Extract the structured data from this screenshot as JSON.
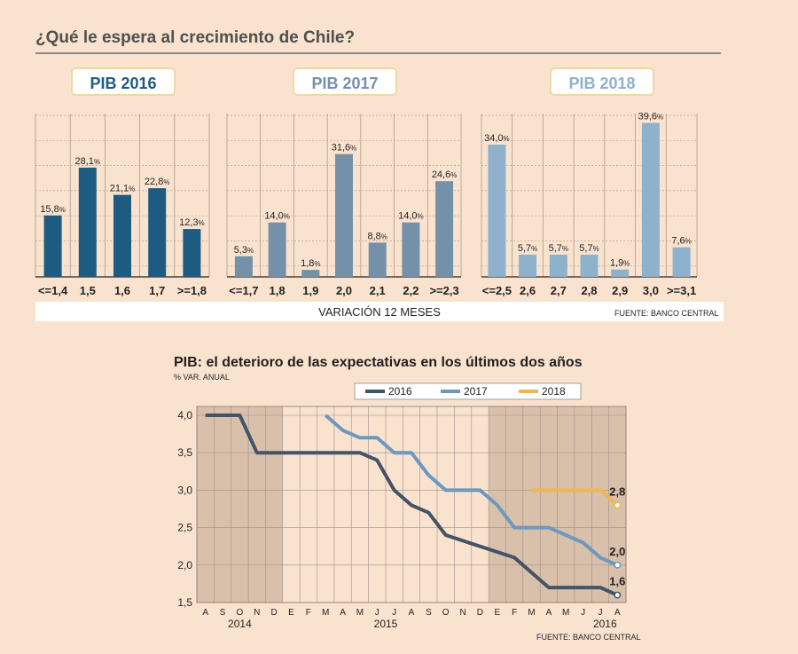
{
  "header": {
    "title": "¿Qué le espera al crecimiento de Chile?"
  },
  "caption": {
    "variacion": "VARIACIÓN 12 MESES",
    "source_top": "FUENTE: BANCO CENTRAL"
  },
  "line_header": {
    "title": "PIB: el deterioro de las expectativas en los últimos dos años",
    "subtitle": "% VAR. ANUAL",
    "source": "FUENTE: BANCO CENTRAL"
  },
  "colors": {
    "c2016": "#1d5b80",
    "c2017": "#7590a9",
    "c2018": "#8eb1cc",
    "line2016": "#435466",
    "line2017": "#6d99bf",
    "line2018": "#eeb655",
    "shade": "#d9c0aa",
    "pill_border": "#eed9a4"
  },
  "chart_data": [
    {
      "type": "bar",
      "title": "PIB 2016",
      "categories": [
        "<=1,4",
        "1,5",
        "1,6",
        "1,7",
        ">=1,8"
      ],
      "values": [
        15.8,
        28.1,
        21.1,
        22.8,
        12.3
      ],
      "labels": [
        "15,8",
        "28,1",
        "21,1",
        "22,8",
        "12,3"
      ],
      "ylim": [
        0,
        42
      ],
      "xlabel": "VARIACIÓN 12 MESES"
    },
    {
      "type": "bar",
      "title": "PIB 2017",
      "categories": [
        "<=1,7",
        "1,8",
        "1,9",
        "2,0",
        "2,1",
        "2,2",
        ">=2,3"
      ],
      "values": [
        5.3,
        14.0,
        1.8,
        31.6,
        8.8,
        14.0,
        24.6
      ],
      "labels": [
        "5,3",
        "14,0",
        "1,8",
        "31,6",
        "8,8",
        "14,0",
        "24,6"
      ],
      "ylim": [
        0,
        42
      ],
      "xlabel": "VARIACIÓN 12 MESES"
    },
    {
      "type": "bar",
      "title": "PIB 2018",
      "categories": [
        "<=2,5",
        "2,6",
        "2,7",
        "2,8",
        "2,9",
        "3,0",
        ">=3,1"
      ],
      "values": [
        34.0,
        5.7,
        5.7,
        5.7,
        1.9,
        39.6,
        7.6
      ],
      "labels": [
        "34,0",
        "5,7",
        "5,7",
        "5,7",
        "1,9",
        "39,6",
        "7,6"
      ],
      "ylim": [
        0,
        42
      ],
      "xlabel": "VARIACIÓN 12 MESES"
    },
    {
      "type": "line",
      "title": "PIB: el deterioro de las expectativas en los últimos dos años",
      "ylabel": "% VAR. ANUAL",
      "ylim": [
        1.5,
        4.0
      ],
      "yticks": [
        "4,0",
        "3,5",
        "3,0",
        "2,5",
        "2,0",
        "1,5"
      ],
      "x": [
        "A",
        "S",
        "O",
        "N",
        "D",
        "E",
        "F",
        "M",
        "A",
        "M",
        "J",
        "J",
        "A",
        "S",
        "O",
        "N",
        "D",
        "E",
        "F",
        "M",
        "A",
        "M",
        "J",
        "J",
        "A"
      ],
      "years": [
        {
          "label": "2014",
          "span": [
            0,
            4
          ]
        },
        {
          "label": "2015",
          "span": [
            5,
            16
          ]
        },
        {
          "label": "2016",
          "span": [
            17,
            24
          ]
        }
      ],
      "shaded_ranges": [
        [
          0,
          4
        ],
        [
          17,
          24
        ]
      ],
      "series": [
        {
          "name": "2016",
          "values": [
            [
              0,
              4.0
            ],
            [
              2,
              4.0
            ],
            [
              3,
              3.5
            ],
            [
              9,
              3.5
            ],
            [
              10,
              3.4
            ],
            [
              11,
              3.0
            ],
            [
              12,
              2.8
            ],
            [
              13,
              2.7
            ],
            [
              14,
              2.4
            ],
            [
              18,
              2.1
            ],
            [
              19,
              1.9
            ],
            [
              20,
              1.7
            ],
            [
              23,
              1.7
            ],
            [
              24,
              1.6
            ]
          ],
          "end_label": "1,6"
        },
        {
          "name": "2017",
          "values": [
            [
              7,
              4.0
            ],
            [
              8,
              3.8
            ],
            [
              9,
              3.7
            ],
            [
              10,
              3.7
            ],
            [
              11,
              3.5
            ],
            [
              12,
              3.5
            ],
            [
              13,
              3.2
            ],
            [
              14,
              3.0
            ],
            [
              16,
              3.0
            ],
            [
              17,
              2.8
            ],
            [
              18,
              2.5
            ],
            [
              20,
              2.5
            ],
            [
              22,
              2.3
            ],
            [
              23,
              2.1
            ],
            [
              24,
              2.0
            ]
          ],
          "end_label": "2,0"
        },
        {
          "name": "2018",
          "values": [
            [
              19,
              3.0
            ],
            [
              23,
              3.0
            ],
            [
              24,
              2.8
            ]
          ],
          "end_label": "2,8"
        }
      ]
    }
  ]
}
